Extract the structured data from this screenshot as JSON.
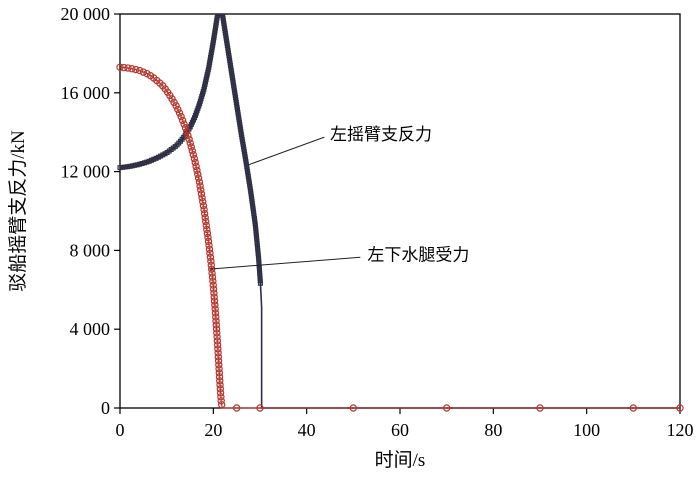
{
  "chart_data": {
    "type": "line",
    "title": "",
    "xlabel": "时间/s",
    "ylabel": "驳船摇臂支反力/kN",
    "xlim": [
      0,
      120
    ],
    "ylim": [
      0,
      20000
    ],
    "grid": false,
    "legend_position": "none",
    "xticks": [
      0,
      20,
      40,
      60,
      80,
      100,
      120
    ],
    "xtick_labels": [
      "0",
      "20",
      "40",
      "60",
      "80",
      "100",
      "120"
    ],
    "yticks": [
      0,
      4000,
      8000,
      12000,
      16000,
      20000
    ],
    "ytick_labels": [
      "0",
      "4 000",
      "8 000",
      "12 000",
      "16 000",
      "20 000"
    ],
    "series": [
      {
        "id": "left-rocker-arm",
        "name": "左摇臂支反力",
        "color": "#2e2e44",
        "marker": "square",
        "marker_spacing_px": 2.5,
        "marker_dense_until_x": 30.2,
        "sparse_markers_after": false,
        "line_width": 1.6,
        "points": [
          [
            0,
            12200
          ],
          [
            2,
            12260
          ],
          [
            4,
            12360
          ],
          [
            6,
            12500
          ],
          [
            8,
            12700
          ],
          [
            10,
            12950
          ],
          [
            12,
            13300
          ],
          [
            13,
            13550
          ],
          [
            14,
            13850
          ],
          [
            15,
            14250
          ],
          [
            16,
            14750
          ],
          [
            17,
            15400
          ],
          [
            18,
            16200
          ],
          [
            19,
            17250
          ],
          [
            20,
            18600
          ],
          [
            20.8,
            19800
          ],
          [
            21.4,
            20400
          ],
          [
            22,
            19900
          ],
          [
            23,
            18400
          ],
          [
            24,
            16900
          ],
          [
            25,
            15400
          ],
          [
            26,
            13900
          ],
          [
            27,
            12500
          ],
          [
            28,
            11000
          ],
          [
            29,
            9300
          ],
          [
            29.7,
            7600
          ],
          [
            30.1,
            6300
          ],
          [
            30.35,
            5100
          ],
          [
            30.35,
            0
          ],
          [
            40,
            0
          ],
          [
            60,
            0
          ],
          [
            80,
            0
          ],
          [
            100,
            0
          ],
          [
            120,
            0
          ]
        ]
      },
      {
        "id": "left-launch-leg",
        "name": "左下水腿受力",
        "color": "#b5382f",
        "marker": "circle",
        "marker_spacing_px": 4,
        "marker_dense_until_x": 22,
        "sparse_markers_after": true,
        "line_width": 1.2,
        "points": [
          [
            0,
            17300
          ],
          [
            2,
            17250
          ],
          [
            4,
            17150
          ],
          [
            5,
            17050
          ],
          [
            6,
            16950
          ],
          [
            7,
            16800
          ],
          [
            8,
            16600
          ],
          [
            9,
            16400
          ],
          [
            10,
            16100
          ],
          [
            11,
            15750
          ],
          [
            12,
            15350
          ],
          [
            13,
            14850
          ],
          [
            14,
            14250
          ],
          [
            15,
            13500
          ],
          [
            16,
            12600
          ],
          [
            17,
            11500
          ],
          [
            18,
            10100
          ],
          [
            19,
            8400
          ],
          [
            19.5,
            7400
          ],
          [
            20,
            6200
          ],
          [
            20.5,
            4700
          ],
          [
            21,
            2900
          ],
          [
            21.4,
            1300
          ],
          [
            21.7,
            300
          ],
          [
            21.9,
            0
          ],
          [
            25,
            0
          ],
          [
            30,
            0
          ],
          [
            50,
            0
          ],
          [
            70,
            0
          ],
          [
            90,
            0
          ],
          [
            110,
            0
          ],
          [
            120,
            0
          ]
        ]
      }
    ],
    "annotations": [
      {
        "text": "左摇臂支反力",
        "text_x": 45,
        "text_y": 13900,
        "leader": [
          [
            43.8,
            13750
          ],
          [
            27.6,
            12350
          ]
        ]
      },
      {
        "text": "左下水腿受力",
        "text_x": 53,
        "text_y": 7800,
        "leader": [
          [
            51.5,
            7650
          ],
          [
            19.2,
            7050
          ]
        ]
      }
    ]
  }
}
